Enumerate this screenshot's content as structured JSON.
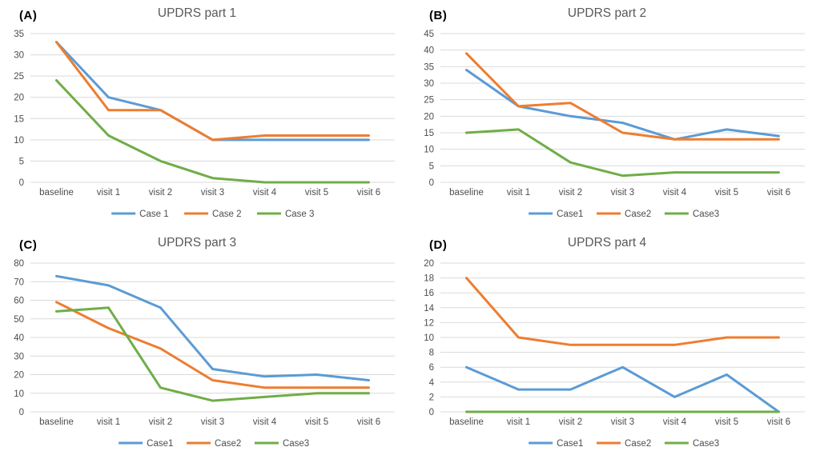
{
  "figure": {
    "background": "#ffffff",
    "grid_color": "#d9d9d9",
    "tick_label_color": "#4d4d4d",
    "title_color": "#595959",
    "panel_label_color": "#000000",
    "line_width": 3
  },
  "chart_data": [
    {
      "type": "line",
      "panel_label": "(A)",
      "title": "UPDRS part 1",
      "categories": [
        "baseline",
        "visit 1",
        "visit 2",
        "visit 3",
        "visit 4",
        "visit 5",
        "visit 6"
      ],
      "ylim": [
        0,
        35
      ],
      "ytick_step": 5,
      "grid": true,
      "legend_position": "bottom",
      "series": [
        {
          "name": "Case 1",
          "color": "#5B9BD5",
          "values": [
            33,
            20,
            17,
            10,
            10,
            10,
            10
          ]
        },
        {
          "name": "Case 2",
          "color": "#ED7D31",
          "values": [
            33,
            17,
            17,
            10,
            11,
            11,
            11
          ]
        },
        {
          "name": "Case 3",
          "color": "#70AD47",
          "values": [
            24,
            11,
            5,
            1,
            0,
            0,
            0
          ]
        }
      ]
    },
    {
      "type": "line",
      "panel_label": "(B)",
      "title": "UPDRS part 2",
      "categories": [
        "baseline",
        "visit 1",
        "visit 2",
        "visit 3",
        "visit 4",
        "visit 5",
        "visit 6"
      ],
      "ylim": [
        0,
        45
      ],
      "ytick_step": 5,
      "grid": true,
      "legend_position": "bottom",
      "series": [
        {
          "name": "Case1",
          "color": "#5B9BD5",
          "values": [
            34,
            23,
            20,
            18,
            13,
            16,
            14
          ]
        },
        {
          "name": "Case2",
          "color": "#ED7D31",
          "values": [
            39,
            23,
            24,
            15,
            13,
            13,
            13
          ]
        },
        {
          "name": "Case3",
          "color": "#70AD47",
          "values": [
            15,
            16,
            6,
            2,
            3,
            3,
            3
          ]
        }
      ]
    },
    {
      "type": "line",
      "panel_label": "(C)",
      "title": "UPDRS part 3",
      "categories": [
        "baseline",
        "visit 1",
        "visit 2",
        "visit 3",
        "visit 4",
        "visit 5",
        "visit 6"
      ],
      "ylim": [
        0,
        80
      ],
      "ytick_step": 10,
      "grid": true,
      "legend_position": "bottom",
      "series": [
        {
          "name": "Case1",
          "color": "#5B9BD5",
          "values": [
            73,
            68,
            56,
            23,
            19,
            20,
            17
          ]
        },
        {
          "name": "Case2",
          "color": "#ED7D31",
          "values": [
            59,
            45,
            34,
            17,
            13,
            13,
            13
          ]
        },
        {
          "name": "Case3",
          "color": "#70AD47",
          "values": [
            54,
            56,
            13,
            6,
            8,
            10,
            10
          ]
        }
      ]
    },
    {
      "type": "line",
      "panel_label": "(D)",
      "title": "UPDRS part 4",
      "categories": [
        "baseline",
        "visit 1",
        "visit 2",
        "visit 3",
        "visit 4",
        "visit 5",
        "visit 6"
      ],
      "ylim": [
        0,
        20
      ],
      "ytick_step": 2,
      "grid": true,
      "legend_position": "bottom",
      "series": [
        {
          "name": "Case1",
          "color": "#5B9BD5",
          "values": [
            6,
            3,
            3,
            6,
            2,
            5,
            0
          ]
        },
        {
          "name": "Case2",
          "color": "#ED7D31",
          "values": [
            18,
            10,
            9,
            9,
            9,
            10,
            10
          ]
        },
        {
          "name": "Case3",
          "color": "#70AD47",
          "values": [
            0,
            0,
            0,
            0,
            0,
            0,
            0
          ]
        }
      ]
    }
  ]
}
